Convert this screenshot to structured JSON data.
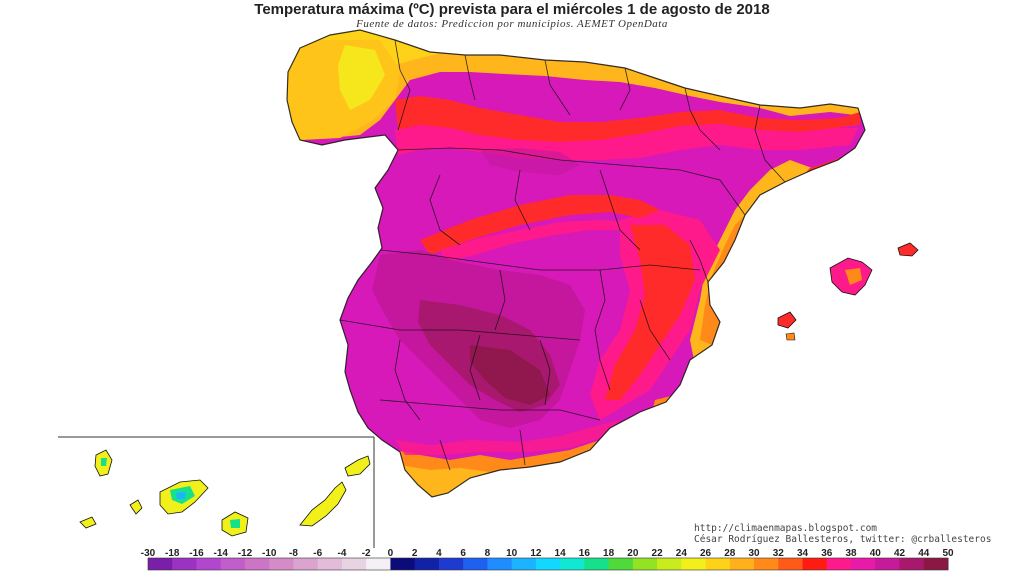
{
  "header": {
    "title": "Temperatura máxima (ºC) prevista para el miércoles 1 de agosto de 2018",
    "subtitle": "Fuente de datos: Prediccion por municipios. AEMET OpenData"
  },
  "credits": {
    "line1": "http://climaenmapas.blogspot.com",
    "line2": "César Rodríguez Ballesteros, twitter: @crballesteros"
  },
  "legend": {
    "labels": [
      "-30",
      "-18",
      "-16",
      "-14",
      "-12",
      "-10",
      "-8",
      "-6",
      "-4",
      "-2",
      "0",
      "2",
      "4",
      "6",
      "8",
      "10",
      "12",
      "14",
      "16",
      "18",
      "20",
      "22",
      "24",
      "26",
      "28",
      "30",
      "32",
      "34",
      "36",
      "38",
      "40",
      "42",
      "44",
      "50"
    ],
    "colors": [
      "#7a1fa8",
      "#9b33c2",
      "#b247cf",
      "#c25ec9",
      "#cc74c6",
      "#d48cc8",
      "#dba4cf",
      "#e2bcd8",
      "#e8d3e3",
      "#f5f0f5",
      "#0b0b7a",
      "#1221a6",
      "#1e3bcf",
      "#2060f0",
      "#1f8cff",
      "#1cb4ff",
      "#12d8ff",
      "#10e8d2",
      "#16e08a",
      "#4fd93b",
      "#93e323",
      "#c8ec1e",
      "#f2f01b",
      "#ffd21a",
      "#ffb01a",
      "#ff8a1a",
      "#ff5a17",
      "#ff1a12",
      "#ff1a8c",
      "#e81aa8",
      "#c51a9a",
      "#a8196e",
      "#8a1744"
    ]
  },
  "map": {
    "region": "Península Ibérica, Baleares y Canarias",
    "dominant_color": "#d619b8",
    "hot_core_color": "#9c1876",
    "coast_colors": [
      "#ffb81a",
      "#ff8a1a",
      "#ff2a2a"
    ]
  }
}
